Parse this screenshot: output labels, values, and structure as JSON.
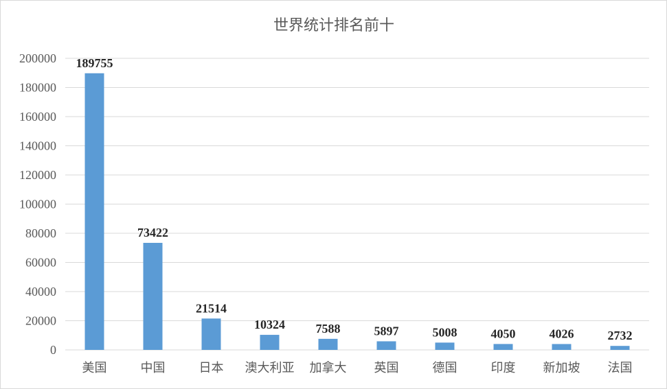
{
  "chart_data": {
    "type": "bar",
    "title": "世界统计排名前十",
    "categories": [
      "美国",
      "中国",
      "日本",
      "澳大利亚",
      "加拿大",
      "英国",
      "德国",
      "印度",
      "新加坡",
      "法国"
    ],
    "values": [
      189755,
      73422,
      21514,
      10324,
      7588,
      5897,
      5008,
      4050,
      4026,
      2732
    ],
    "ylim": [
      0,
      200000
    ],
    "yticks": [
      0,
      20000,
      40000,
      60000,
      80000,
      100000,
      120000,
      140000,
      160000,
      180000,
      200000
    ],
    "grid": true,
    "legend": "none",
    "bar_color": "#5b9bd5"
  }
}
